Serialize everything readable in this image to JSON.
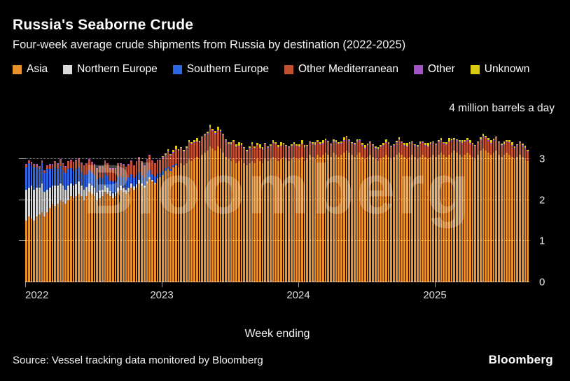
{
  "header": {
    "title": "Russia's Seaborne Crude",
    "subtitle": "Four-week average crude shipments from Russia by destination (2022-2025)"
  },
  "legend": [
    {
      "label": "Asia",
      "color": "#E8912D"
    },
    {
      "label": "Northern Europe",
      "color": "#D9D9D9"
    },
    {
      "label": "Southern Europe",
      "color": "#2D66E3"
    },
    {
      "label": "Other Mediterranean",
      "color": "#C0502F"
    },
    {
      "label": "Other",
      "color": "#A352C7"
    },
    {
      "label": "Unknown",
      "color": "#D9C912"
    }
  ],
  "chart": {
    "top_label": "4 million barrels a day",
    "x_axis_label": "Week ending",
    "y_ticks": [
      0,
      1,
      2,
      3
    ],
    "ymax": 4,
    "year_labels": [
      {
        "label": "2022",
        "index": 0
      },
      {
        "label": "2023",
        "index": 52
      },
      {
        "label": "2024",
        "index": 104
      },
      {
        "label": "2025",
        "index": 156
      }
    ]
  },
  "watermark": "Bloomberg",
  "footer": {
    "source": "Source: Vessel tracking data monitored by Bloomberg",
    "logo": "Bloomberg"
  },
  "chart_data": {
    "type": "bar",
    "stacked": true,
    "title": "Russia's Seaborne Crude",
    "subtitle": "Four-week average crude shipments from Russia by destination (2022-2025)",
    "x_unit": "week ending (weekly, Jan 2022 - Sep 2025)",
    "n_points": 192,
    "year_start_indices": {
      "2022": 0,
      "2023": 52,
      "2024": 104,
      "2025": 156
    },
    "ylabel": "million barrels a day",
    "ylim": [
      0,
      4
    ],
    "grid": true,
    "legend_position": "top",
    "series": [
      {
        "name": "Asia",
        "color": "#E8912D",
        "values": [
          1.5,
          1.6,
          1.55,
          1.5,
          1.6,
          1.65,
          1.7,
          1.6,
          1.7,
          1.8,
          1.9,
          1.85,
          1.9,
          2.0,
          1.95,
          1.9,
          2.0,
          2.1,
          2.05,
          2.1,
          2.15,
          2.1,
          2.0,
          2.1,
          2.2,
          2.15,
          2.1,
          2.0,
          2.05,
          2.1,
          2.2,
          2.15,
          2.1,
          2.05,
          2.1,
          2.2,
          2.25,
          2.2,
          2.15,
          2.2,
          2.3,
          2.25,
          2.3,
          2.4,
          2.35,
          2.3,
          2.4,
          2.5,
          2.45,
          2.4,
          2.5,
          2.55,
          2.6,
          2.7,
          2.75,
          2.7,
          2.8,
          2.85,
          2.8,
          2.9,
          2.85,
          2.9,
          3.0,
          2.95,
          3.0,
          3.05,
          3.0,
          3.1,
          3.15,
          3.2,
          3.3,
          3.25,
          3.2,
          3.3,
          3.25,
          3.15,
          3.05,
          3.0,
          2.95,
          3.0,
          2.9,
          2.95,
          3.0,
          2.9,
          2.85,
          2.9,
          2.95,
          2.9,
          3.0,
          2.95,
          2.9,
          3.0,
          2.95,
          3.0,
          3.05,
          3.0,
          2.95,
          3.0,
          3.05,
          3.0,
          2.95,
          3.0,
          3.05,
          3.0,
          3.0,
          3.05,
          2.95,
          3.0,
          3.1,
          3.05,
          3.0,
          3.1,
          3.05,
          3.1,
          3.15,
          3.1,
          3.05,
          3.15,
          3.1,
          3.05,
          3.1,
          3.15,
          3.2,
          3.15,
          3.1,
          3.05,
          3.1,
          3.15,
          3.05,
          3.0,
          3.05,
          3.1,
          3.05,
          3.0,
          2.95,
          3.0,
          3.05,
          3.1,
          3.05,
          3.0,
          3.05,
          3.1,
          3.15,
          3.1,
          3.05,
          3.0,
          3.05,
          3.1,
          3.05,
          3.0,
          3.05,
          3.1,
          3.05,
          3.0,
          3.05,
          3.1,
          3.05,
          3.1,
          3.15,
          3.1,
          3.05,
          3.1,
          3.15,
          3.2,
          3.15,
          3.1,
          3.05,
          3.1,
          3.15,
          3.1,
          3.05,
          3.0,
          3.1,
          3.2,
          3.25,
          3.2,
          3.15,
          3.1,
          3.15,
          3.2,
          3.1,
          3.05,
          3.1,
          3.15,
          3.1,
          3.05,
          3.0,
          3.05,
          3.1,
          3.05,
          3.0,
          2.95
        ]
      },
      {
        "name": "Northern Europe",
        "color": "#D9D9D9",
        "values": [
          0.75,
          0.7,
          0.8,
          0.75,
          0.7,
          0.65,
          0.7,
          0.6,
          0.55,
          0.5,
          0.45,
          0.5,
          0.45,
          0.4,
          0.4,
          0.35,
          0.35,
          0.3,
          0.3,
          0.28,
          0.3,
          0.25,
          0.25,
          0.22,
          0.2,
          0.2,
          0.2,
          0.18,
          0.18,
          0.15,
          0.15,
          0.15,
          0.12,
          0.12,
          0.1,
          0.1,
          0.1,
          0.1,
          0.1,
          0.1,
          0.1,
          0.08,
          0.08,
          0.08,
          0.05,
          0.05,
          0.05,
          0.05,
          0.03,
          0.02,
          0.02,
          0.01,
          0,
          0,
          0,
          0,
          0,
          0,
          0,
          0,
          0,
          0,
          0,
          0,
          0,
          0,
          0,
          0,
          0,
          0,
          0,
          0,
          0,
          0,
          0,
          0,
          0,
          0,
          0,
          0,
          0,
          0,
          0,
          0,
          0,
          0,
          0,
          0,
          0,
          0,
          0,
          0,
          0,
          0,
          0,
          0,
          0,
          0,
          0,
          0,
          0,
          0,
          0,
          0,
          0,
          0,
          0,
          0,
          0,
          0,
          0,
          0,
          0,
          0,
          0,
          0,
          0,
          0,
          0,
          0,
          0,
          0,
          0,
          0,
          0,
          0,
          0,
          0,
          0,
          0,
          0,
          0,
          0,
          0,
          0,
          0,
          0,
          0,
          0,
          0,
          0,
          0,
          0,
          0,
          0,
          0,
          0,
          0,
          0,
          0,
          0,
          0,
          0,
          0,
          0,
          0,
          0,
          0,
          0,
          0,
          0,
          0,
          0,
          0,
          0,
          0,
          0,
          0,
          0,
          0,
          0,
          0,
          0,
          0,
          0,
          0,
          0,
          0,
          0,
          0,
          0,
          0,
          0,
          0,
          0,
          0,
          0,
          0,
          0,
          0,
          0,
          0
        ]
      },
      {
        "name": "Southern Europe",
        "color": "#2D66E3",
        "values": [
          0.55,
          0.6,
          0.5,
          0.55,
          0.5,
          0.45,
          0.5,
          0.45,
          0.5,
          0.45,
          0.4,
          0.45,
          0.4,
          0.42,
          0.38,
          0.4,
          0.4,
          0.38,
          0.35,
          0.38,
          0.35,
          0.32,
          0.35,
          0.3,
          0.32,
          0.3,
          0.3,
          0.32,
          0.3,
          0.28,
          0.3,
          0.28,
          0.25,
          0.28,
          0.25,
          0.25,
          0.22,
          0.25,
          0.22,
          0.25,
          0.22,
          0.2,
          0.22,
          0.2,
          0.2,
          0.18,
          0.2,
          0.18,
          0.15,
          0.15,
          0.12,
          0.1,
          0.1,
          0.08,
          0.06,
          0.05,
          0.04,
          0.02,
          0,
          0,
          0,
          0,
          0,
          0,
          0,
          0,
          0,
          0,
          0,
          0,
          0,
          0,
          0,
          0,
          0,
          0,
          0,
          0,
          0,
          0,
          0,
          0,
          0,
          0,
          0,
          0,
          0,
          0,
          0,
          0,
          0,
          0,
          0,
          0,
          0,
          0,
          0,
          0,
          0,
          0,
          0,
          0,
          0,
          0,
          0,
          0,
          0,
          0,
          0,
          0,
          0,
          0,
          0,
          0,
          0,
          0,
          0,
          0,
          0,
          0,
          0,
          0,
          0,
          0,
          0,
          0,
          0,
          0,
          0,
          0,
          0,
          0,
          0,
          0,
          0,
          0,
          0,
          0,
          0,
          0,
          0,
          0,
          0,
          0,
          0,
          0,
          0,
          0,
          0,
          0,
          0,
          0,
          0,
          0,
          0,
          0,
          0,
          0,
          0,
          0,
          0,
          0,
          0,
          0,
          0,
          0,
          0,
          0,
          0,
          0,
          0,
          0,
          0,
          0,
          0,
          0,
          0,
          0,
          0,
          0,
          0,
          0,
          0,
          0,
          0,
          0,
          0,
          0,
          0,
          0,
          0,
          0
        ]
      },
      {
        "name": "Other Mediterranean",
        "color": "#C0502F",
        "values": [
          0.05,
          0.05,
          0.05,
          0.05,
          0.05,
          0.05,
          0.05,
          0.05,
          0.08,
          0.1,
          0.1,
          0.12,
          0.12,
          0.15,
          0.15,
          0.15,
          0.18,
          0.18,
          0.2,
          0.2,
          0.2,
          0.22,
          0.22,
          0.25,
          0.25,
          0.25,
          0.25,
          0.25,
          0.28,
          0.28,
          0.3,
          0.3,
          0.28,
          0.3,
          0.3,
          0.32,
          0.3,
          0.3,
          0.32,
          0.3,
          0.32,
          0.3,
          0.32,
          0.35,
          0.32,
          0.3,
          0.32,
          0.35,
          0.32,
          0.3,
          0.32,
          0.3,
          0.32,
          0.3,
          0.35,
          0.32,
          0.3,
          0.35,
          0.38,
          0.35,
          0.32,
          0.35,
          0.38,
          0.4,
          0.38,
          0.35,
          0.38,
          0.4,
          0.42,
          0.4,
          0.45,
          0.42,
          0.4,
          0.38,
          0.4,
          0.42,
          0.38,
          0.35,
          0.38,
          0.4,
          0.38,
          0.35,
          0.32,
          0.35,
          0.32,
          0.35,
          0.38,
          0.35,
          0.32,
          0.3,
          0.32,
          0.35,
          0.32,
          0.3,
          0.32,
          0.35,
          0.32,
          0.3,
          0.28,
          0.3,
          0.32,
          0.3,
          0.28,
          0.3,
          0.28,
          0.3,
          0.32,
          0.3,
          0.28,
          0.3,
          0.32,
          0.3,
          0.28,
          0.26,
          0.28,
          0.3,
          0.28,
          0.26,
          0.28,
          0.3,
          0.26,
          0.28,
          0.3,
          0.28,
          0.26,
          0.28,
          0.3,
          0.28,
          0.26,
          0.24,
          0.26,
          0.28,
          0.26,
          0.24,
          0.26,
          0.28,
          0.26,
          0.28,
          0.3,
          0.28,
          0.26,
          0.28,
          0.3,
          0.28,
          0.26,
          0.28,
          0.3,
          0.28,
          0.26,
          0.28,
          0.3,
          0.28,
          0.26,
          0.28,
          0.3,
          0.28,
          0.28,
          0.3,
          0.28,
          0.26,
          0.28,
          0.3,
          0.28,
          0.26,
          0.28,
          0.3,
          0.32,
          0.3,
          0.28,
          0.26,
          0.28,
          0.3,
          0.28,
          0.26,
          0.28,
          0.3,
          0.28,
          0.26,
          0.28,
          0.3,
          0.28,
          0.26,
          0.24,
          0.26,
          0.28,
          0.26,
          0.24,
          0.26,
          0.28,
          0.26,
          0.24,
          0.22
        ]
      },
      {
        "name": "Other",
        "color": "#A352C7",
        "values": [
          0.02,
          0.02,
          0.02,
          0.02,
          0.02,
          0.02,
          0.02,
          0.02,
          0.02,
          0.02,
          0.02,
          0.02,
          0.02,
          0.02,
          0.02,
          0.02,
          0.02,
          0.02,
          0.02,
          0.02,
          0.02,
          0.02,
          0.02,
          0.02,
          0.02,
          0.02,
          0.02,
          0.02,
          0.02,
          0.02,
          0.02,
          0.02,
          0.02,
          0.02,
          0.02,
          0.02,
          0.02,
          0.02,
          0.02,
          0.02,
          0.02,
          0.02,
          0.02,
          0.02,
          0.02,
          0.02,
          0.02,
          0.02,
          0.02,
          0.02,
          0.02,
          0.02,
          0.02,
          0.02,
          0.02,
          0.02,
          0.02,
          0.02,
          0.02,
          0.02,
          0.02,
          0.02,
          0.02,
          0.02,
          0.02,
          0.02,
          0.02,
          0.02,
          0.02,
          0.02,
          0.02,
          0.02,
          0.02,
          0.02,
          0.02,
          0.02,
          0.02,
          0.02,
          0.02,
          0.02,
          0.02,
          0.02,
          0.02,
          0.02,
          0.02,
          0.02,
          0.02,
          0.02,
          0.02,
          0.02,
          0.02,
          0.02,
          0.02,
          0.02,
          0.02,
          0.02,
          0.02,
          0.02,
          0.02,
          0.02,
          0.02,
          0.02,
          0.02,
          0.02,
          0.02,
          0.02,
          0.02,
          0.02,
          0.02,
          0.02,
          0.02,
          0.02,
          0.02,
          0.02,
          0.02,
          0.02,
          0.02,
          0.02,
          0.02,
          0.02,
          0.02,
          0.02,
          0.02,
          0.02,
          0.02,
          0.02,
          0.02,
          0.02,
          0.02,
          0.02,
          0.02,
          0.02,
          0.02,
          0.02,
          0.02,
          0.02,
          0.02,
          0.02,
          0.02,
          0.02,
          0.02,
          0.02,
          0.02,
          0.02,
          0.02,
          0.02,
          0.02,
          0.02,
          0.02,
          0.02,
          0.02,
          0.02,
          0.02,
          0.02,
          0.02,
          0.02,
          0.02,
          0.02,
          0.02,
          0.02,
          0.02,
          0.02,
          0.02,
          0.02,
          0.02,
          0.02,
          0.02,
          0.02,
          0.02,
          0.02,
          0.02,
          0.02,
          0.02,
          0.02,
          0.02,
          0.02,
          0.02,
          0.02,
          0.02,
          0.02,
          0.02,
          0.02,
          0.02,
          0.02,
          0.02,
          0.02,
          0.02,
          0.02,
          0.02,
          0.02,
          0.02,
          0.02
        ]
      },
      {
        "name": "Unknown",
        "color": "#D9C912",
        "values": [
          0,
          0,
          0,
          0,
          0,
          0,
          0,
          0,
          0,
          0,
          0,
          0,
          0,
          0,
          0,
          0,
          0,
          0,
          0,
          0,
          0,
          0,
          0,
          0,
          0,
          0,
          0,
          0,
          0,
          0,
          0,
          0,
          0,
          0,
          0,
          0,
          0,
          0,
          0,
          0,
          0,
          0,
          0,
          0,
          0,
          0,
          0,
          0,
          0,
          0,
          0,
          0,
          0.02,
          0.04,
          0.06,
          0.03,
          0.05,
          0.08,
          0.04,
          0.02,
          0.02,
          0.04,
          0.06,
          0.03,
          0.05,
          0.08,
          0.04,
          0.02,
          0.02,
          0.04,
          0.06,
          0.03,
          0.05,
          0.08,
          0.04,
          0.02,
          0.02,
          0.04,
          0.06,
          0.03,
          0.05,
          0.08,
          0.04,
          0.02,
          0.02,
          0.04,
          0.06,
          0.03,
          0.05,
          0.08,
          0.04,
          0.02,
          0.02,
          0.04,
          0.06,
          0.03,
          0.05,
          0.08,
          0.04,
          0.02,
          0.02,
          0.04,
          0.06,
          0.03,
          0.05,
          0.08,
          0.04,
          0.02,
          0.02,
          0.04,
          0.06,
          0.03,
          0.05,
          0.08,
          0.04,
          0.02,
          0.02,
          0.04,
          0.06,
          0.03,
          0.05,
          0.08,
          0.04,
          0.02,
          0.02,
          0.04,
          0.06,
          0.03,
          0.05,
          0.08,
          0.04,
          0.02,
          0.02,
          0.04,
          0.06,
          0.03,
          0.05,
          0.08,
          0.04,
          0.02,
          0.02,
          0.04,
          0.06,
          0.03,
          0.05,
          0.08,
          0.04,
          0.02,
          0.02,
          0.04,
          0.06,
          0.03,
          0.05,
          0.08,
          0.04,
          0.02,
          0.02,
          0.04,
          0.06,
          0.03,
          0.05,
          0.08,
          0.04,
          0.02,
          0.02,
          0.04,
          0.06,
          0.03,
          0.05,
          0.08,
          0.04,
          0.02,
          0.02,
          0.04,
          0.06,
          0.03,
          0.05,
          0.08,
          0.04,
          0.02,
          0.02,
          0.04,
          0.06,
          0.03,
          0.05,
          0.08,
          0.04,
          0.02,
          0.02,
          0.04,
          0.06,
          0.03
        ]
      }
    ]
  }
}
